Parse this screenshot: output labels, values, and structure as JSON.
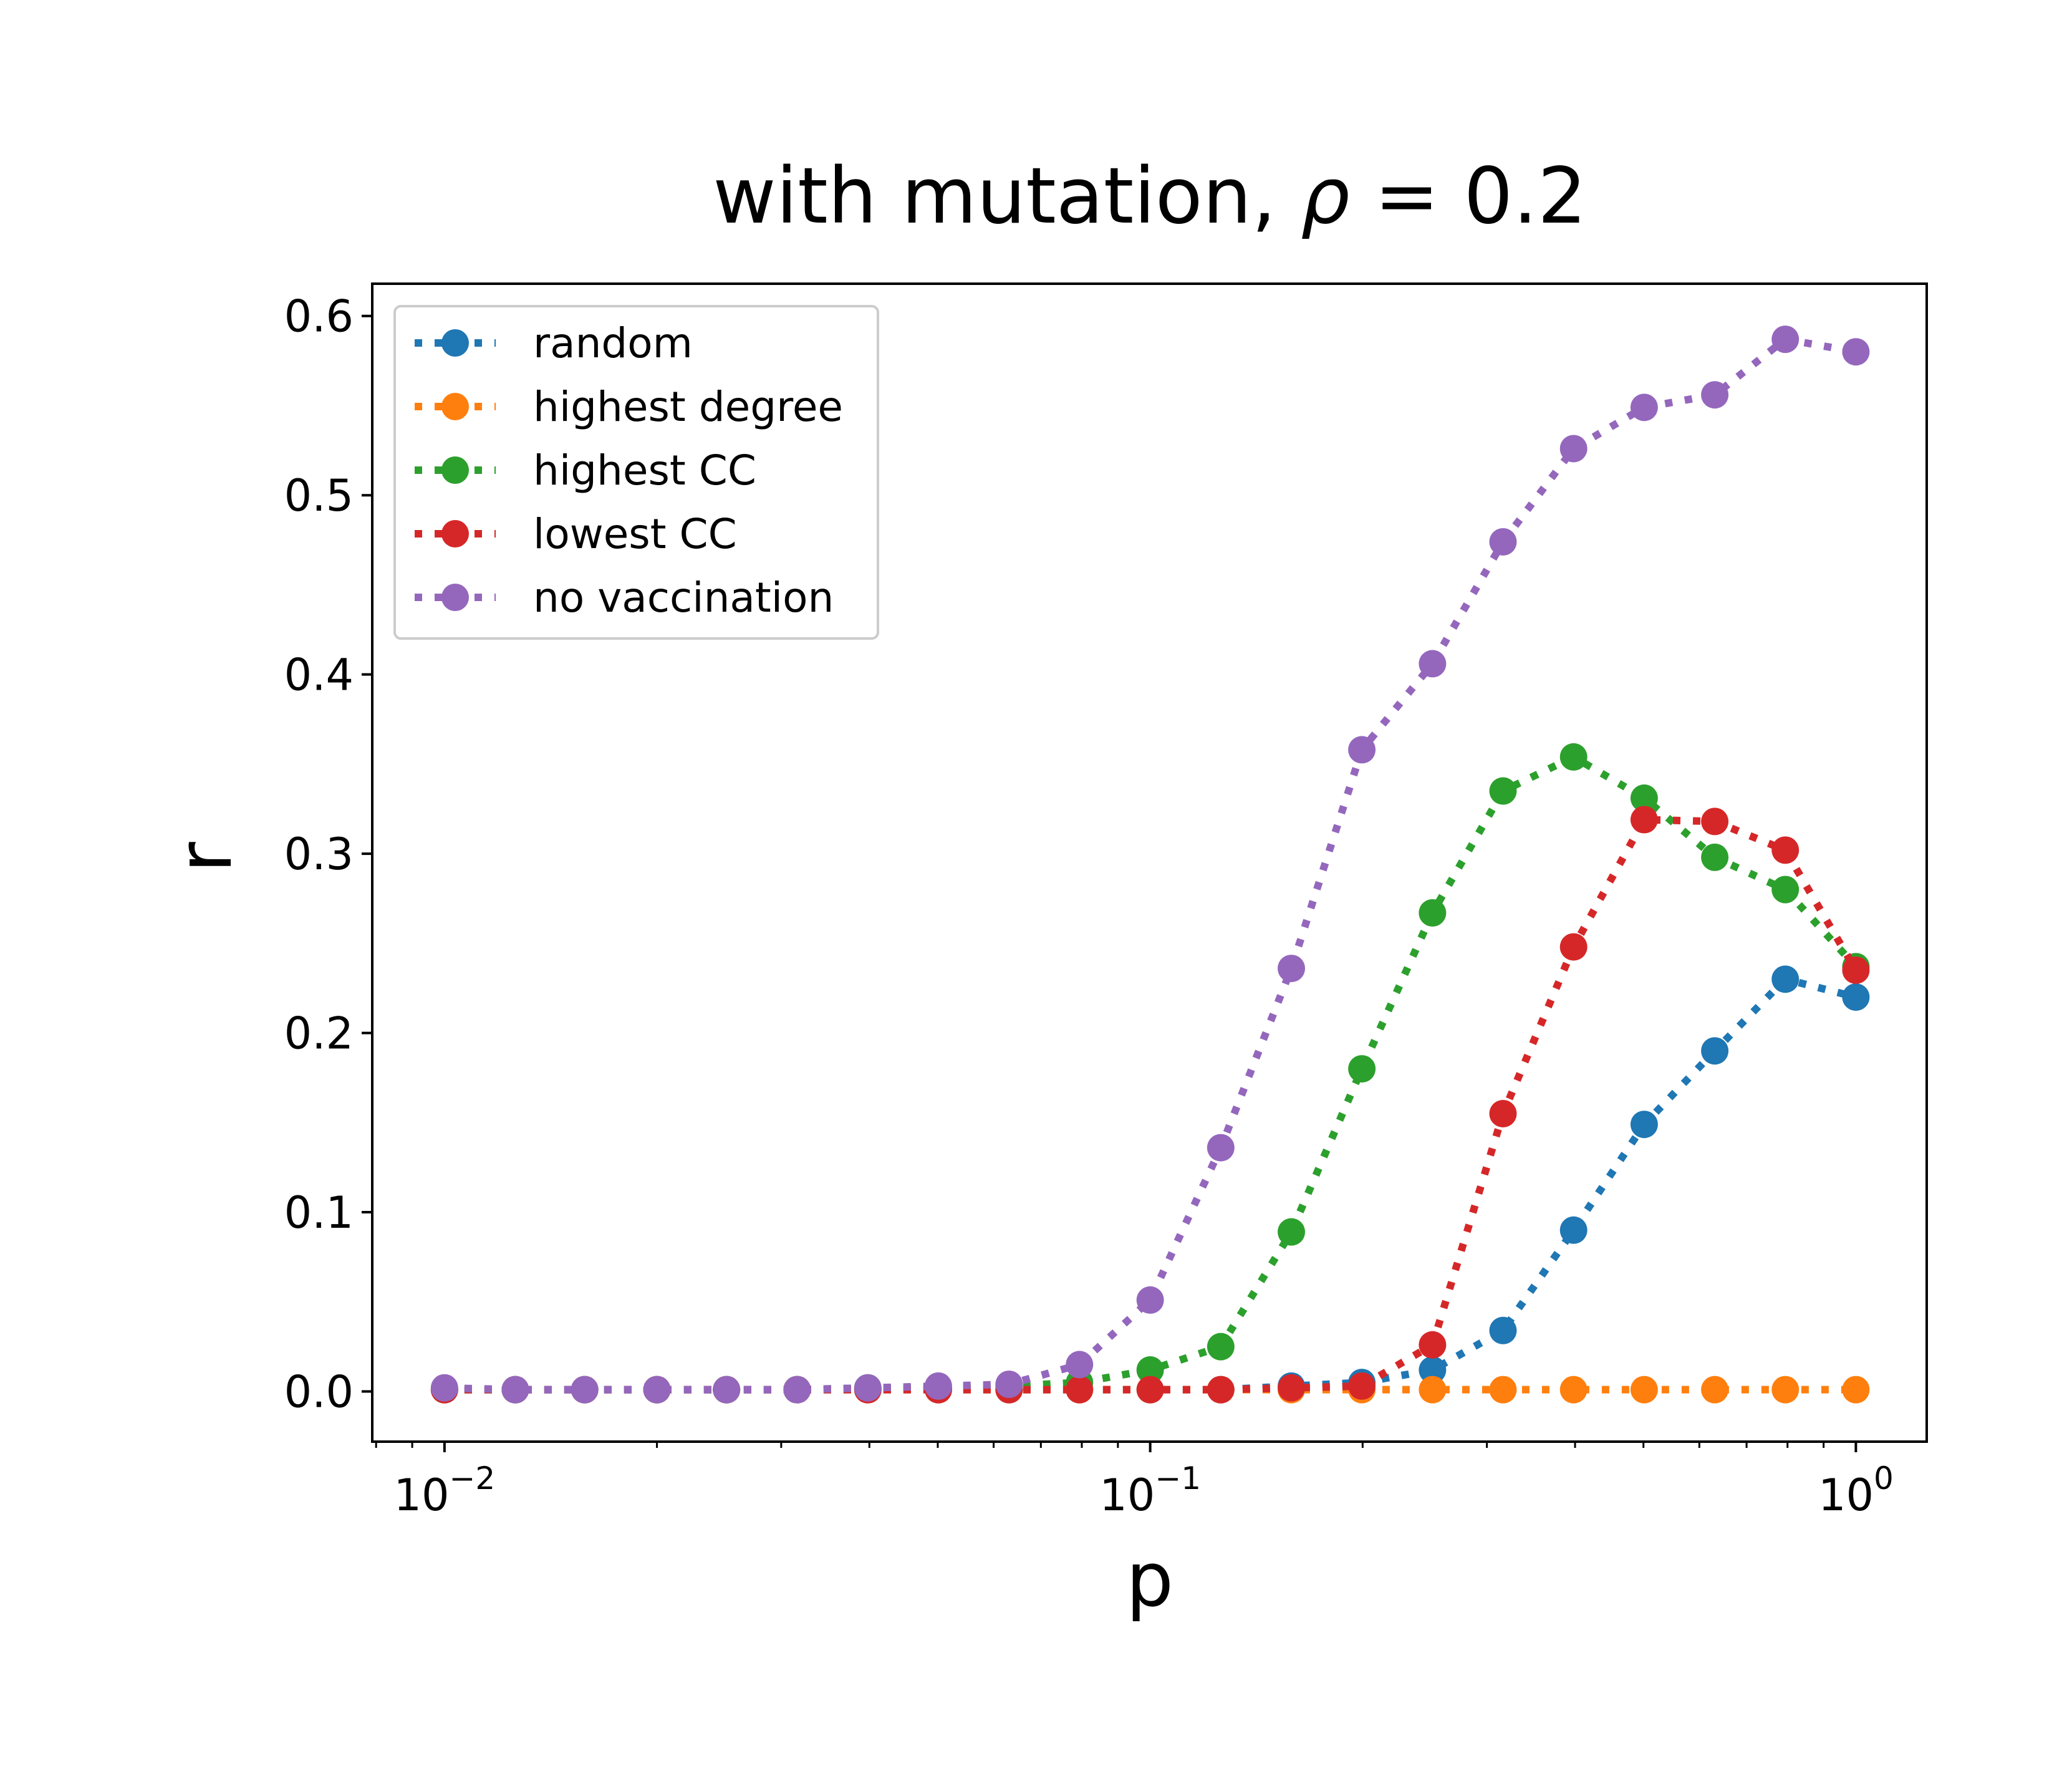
{
  "chart_data": {
    "type": "line",
    "title_prefix": "with mutation, ",
    "title_symbol": "ρ",
    "title_suffix": " = 0.2",
    "xlabel": "p",
    "ylabel": "r",
    "xscale": "log",
    "xlim": [
      0.0079,
      1.26
    ],
    "ylim": [
      -0.028,
      0.618
    ],
    "x_ticks": [
      {
        "value": 0.01,
        "base": "10",
        "exp": "−2"
      },
      {
        "value": 0.1,
        "base": "10",
        "exp": "−1"
      },
      {
        "value": 1,
        "base": "10",
        "exp": "0"
      }
    ],
    "y_ticks": [
      {
        "value": 0.0,
        "label": "0.0"
      },
      {
        "value": 0.1,
        "label": "0.1"
      },
      {
        "value": 0.2,
        "label": "0.2"
      },
      {
        "value": 0.3,
        "label": "0.3"
      },
      {
        "value": 0.4,
        "label": "0.4"
      },
      {
        "value": 0.5,
        "label": "0.5"
      },
      {
        "value": 0.6,
        "label": "0.6"
      }
    ],
    "grid": false,
    "legend_position": "top-left",
    "line_style": "dotted",
    "marker": "circle",
    "x": [
      0.01,
      0.0126,
      0.0158,
      0.02,
      0.0251,
      0.0316,
      0.0398,
      0.0501,
      0.0631,
      0.0794,
      0.1,
      0.1259,
      0.1585,
      0.1995,
      0.2512,
      0.3162,
      0.3981,
      0.5012,
      0.631,
      0.7943,
      1.0
    ],
    "series": [
      {
        "name": "random",
        "color": "#1f77b4",
        "values": [
          0.001,
          0.001,
          0.001,
          0.001,
          0.001,
          0.001,
          0.001,
          0.001,
          0.001,
          0.001,
          0.001,
          0.001,
          0.003,
          0.005,
          0.012,
          0.034,
          0.09,
          0.149,
          0.19,
          0.23,
          0.22
        ]
      },
      {
        "name": "highest degree",
        "color": "#ff7f0e",
        "values": [
          0.001,
          0.001,
          0.001,
          0.001,
          0.001,
          0.001,
          0.001,
          0.001,
          0.001,
          0.001,
          0.001,
          0.001,
          0.001,
          0.001,
          0.001,
          0.001,
          0.001,
          0.001,
          0.001,
          0.001,
          0.001
        ]
      },
      {
        "name": "highest CC",
        "color": "#2ca02c",
        "values": [
          0.001,
          0.001,
          0.001,
          0.001,
          0.001,
          0.001,
          0.002,
          0.002,
          0.003,
          0.005,
          0.012,
          0.025,
          0.089,
          0.18,
          0.267,
          0.335,
          0.354,
          0.331,
          0.298,
          0.28,
          0.237
        ]
      },
      {
        "name": "lowest CC",
        "color": "#d62728",
        "values": [
          0.001,
          0.001,
          0.001,
          0.001,
          0.001,
          0.001,
          0.001,
          0.001,
          0.001,
          0.001,
          0.001,
          0.001,
          0.002,
          0.003,
          0.026,
          0.155,
          0.248,
          0.319,
          0.318,
          0.302,
          0.235
        ]
      },
      {
        "name": "no vaccination",
        "color": "#9467bd",
        "values": [
          0.002,
          0.001,
          0.001,
          0.001,
          0.001,
          0.001,
          0.002,
          0.003,
          0.004,
          0.015,
          0.051,
          0.136,
          0.236,
          0.358,
          0.406,
          0.474,
          0.526,
          0.549,
          0.556,
          0.587,
          0.58
        ]
      }
    ]
  }
}
